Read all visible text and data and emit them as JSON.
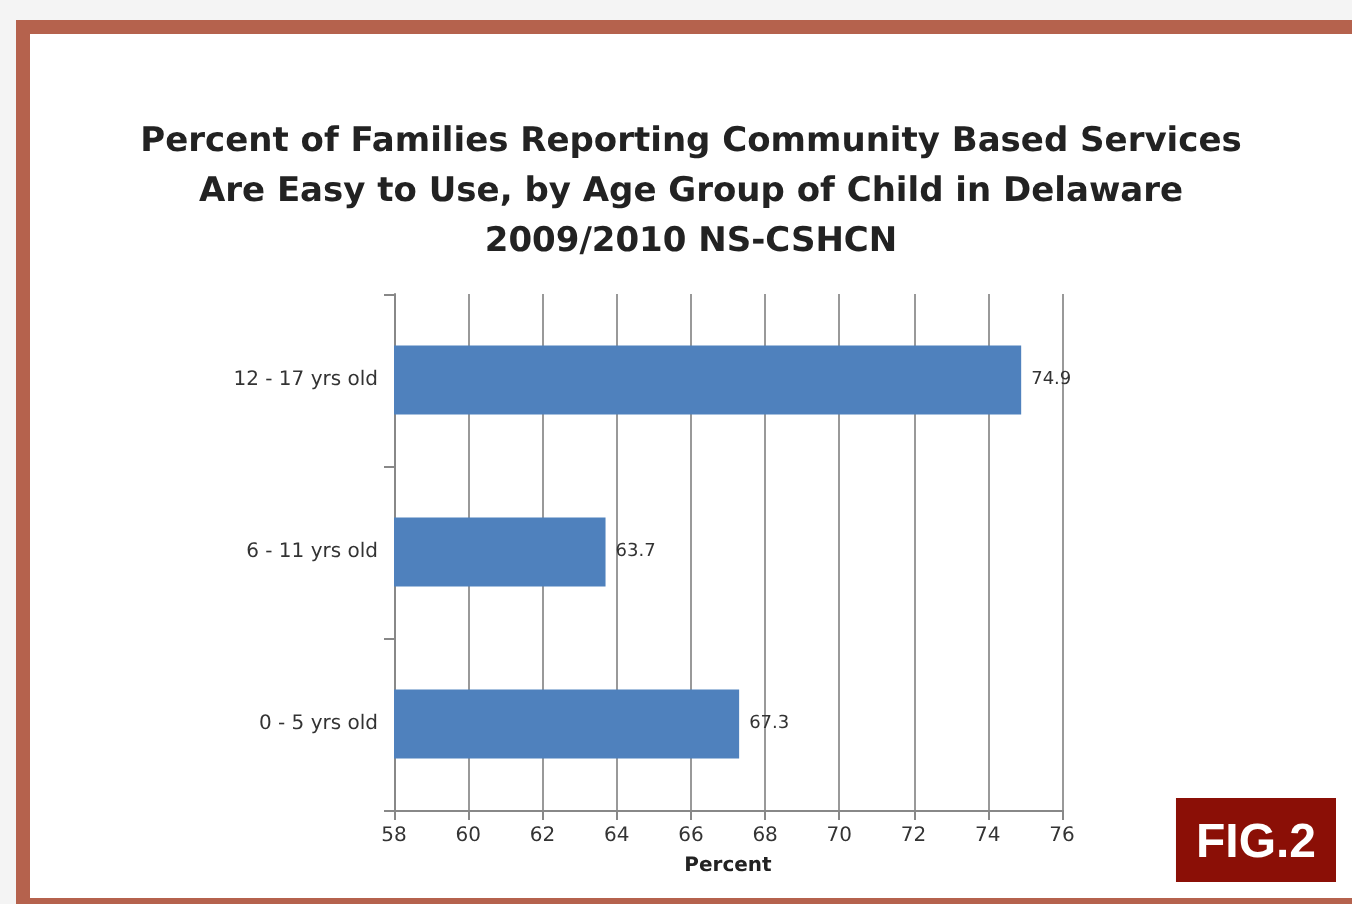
{
  "chart_data": {
    "type": "bar",
    "orientation": "horizontal",
    "title": "Percent of Families Reporting Community Based Services\nAre Easy to Use, by Age Group of Child in Delaware\n2009/2010 NS-CSHCN",
    "categories": [
      "12 - 17 yrs old",
      "6 - 11 yrs old",
      "0 - 5 yrs old"
    ],
    "values": [
      74.9,
      63.7,
      67.3
    ],
    "color": "#4f81bd",
    "xlim": [
      58,
      76
    ],
    "xticks": [
      58,
      60,
      62,
      64,
      66,
      68,
      70,
      72,
      74,
      76
    ],
    "xlabel": "Percent",
    "grid": "x",
    "data_labels": true,
    "annotations": [
      "FIG.2"
    ]
  }
}
